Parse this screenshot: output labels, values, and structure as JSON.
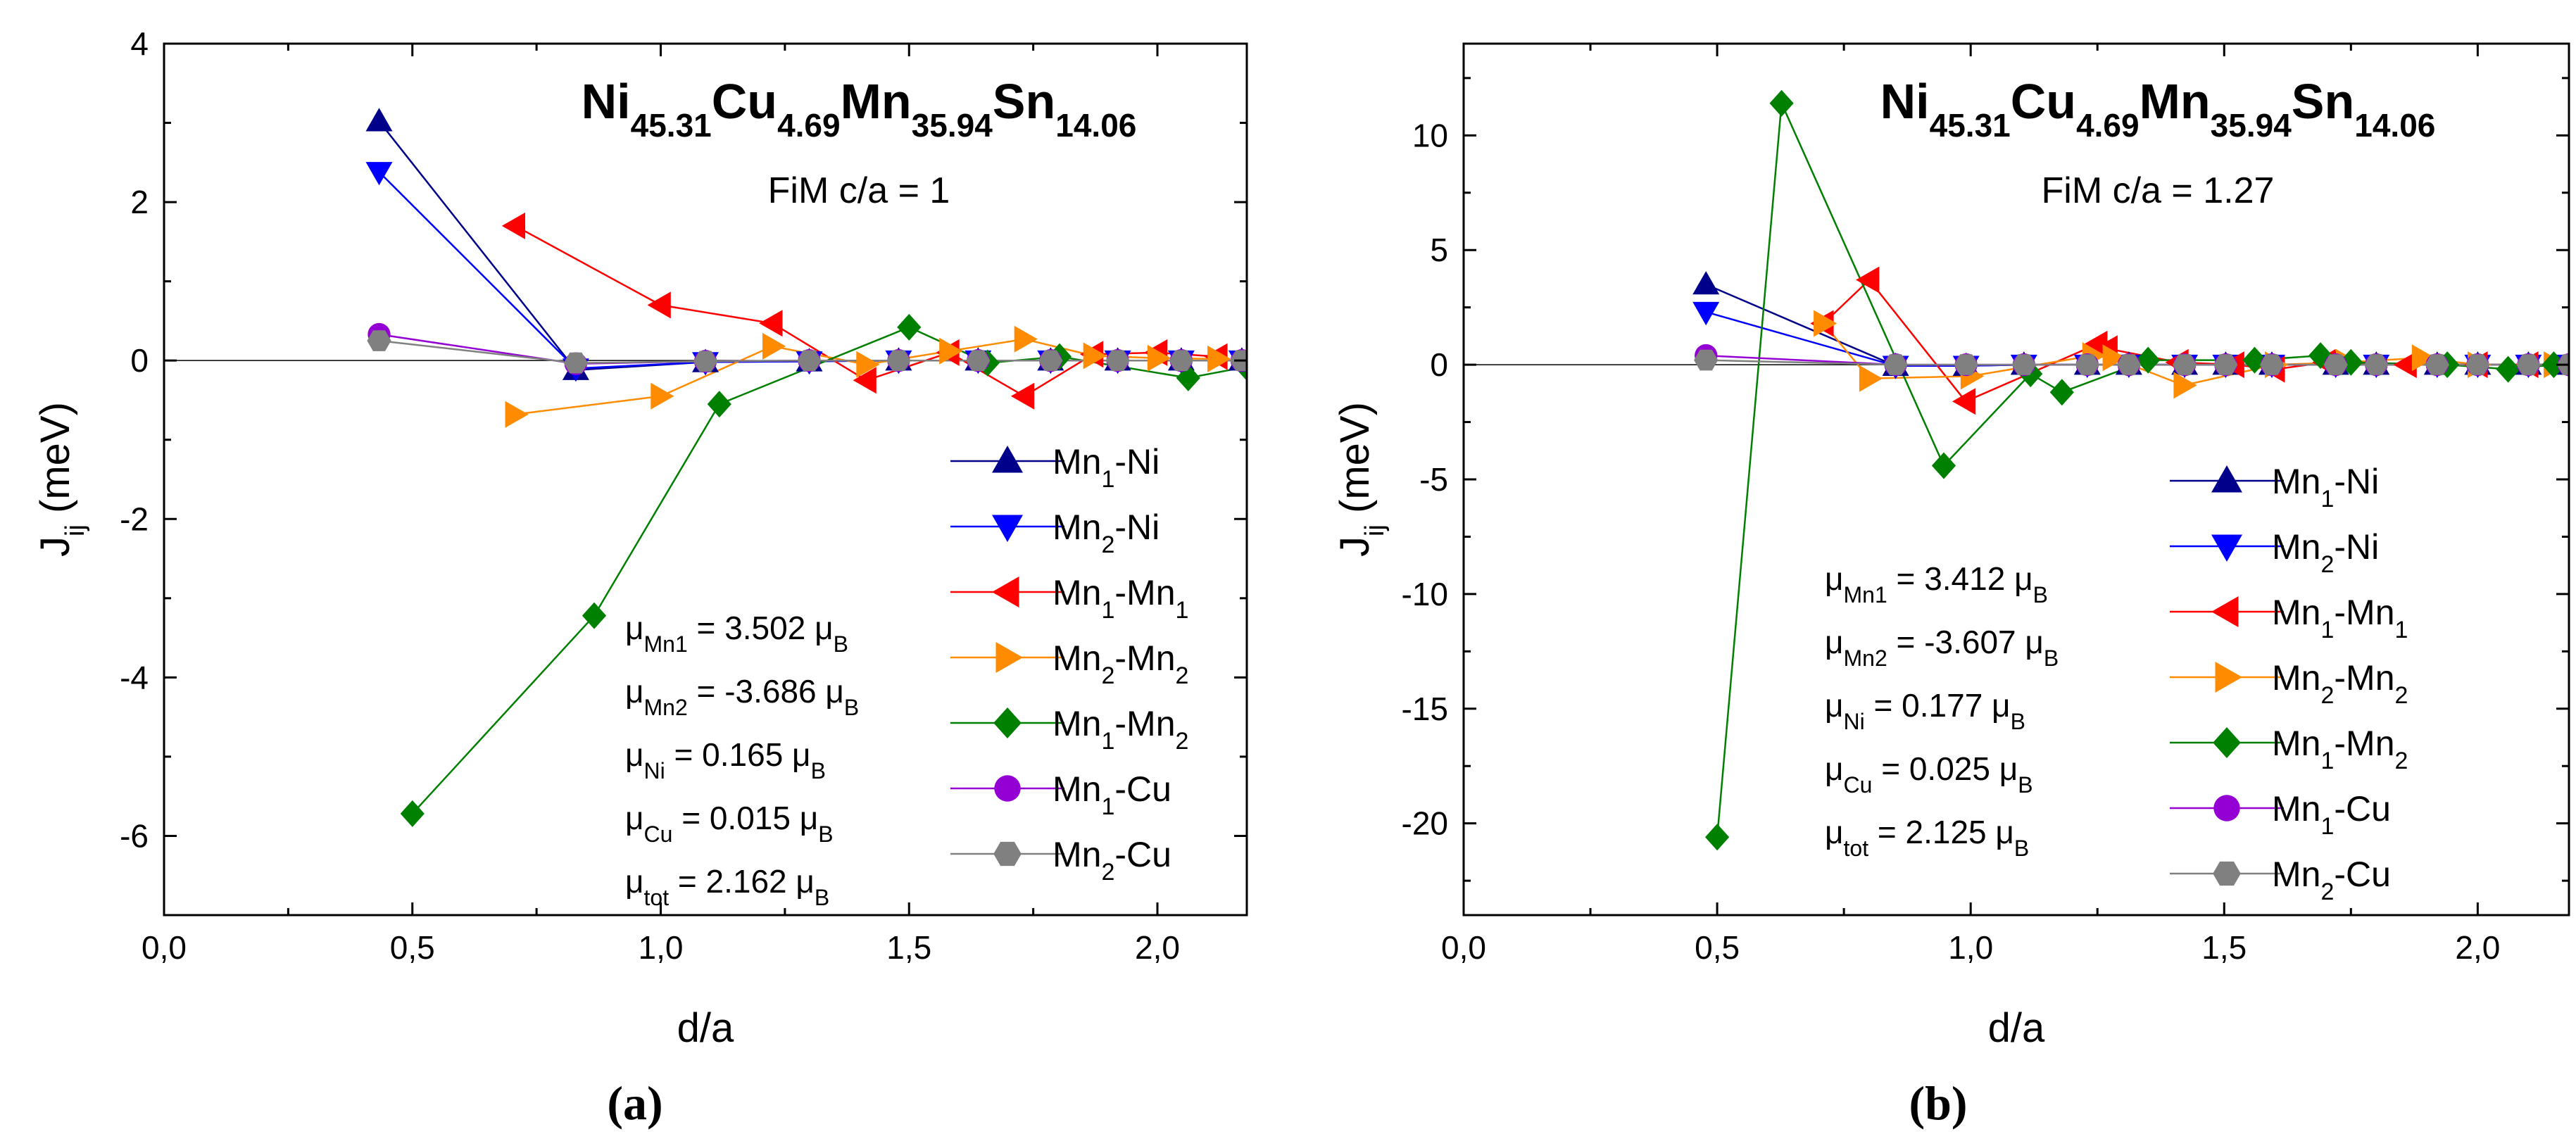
{
  "figure_labels": [
    "(a)",
    "(b)"
  ],
  "chart_data": [
    {
      "type": "line",
      "panel": "(a)",
      "title": {
        "parts": [
          [
            "Ni",
            "45.31"
          ],
          [
            "Cu",
            "4.69"
          ],
          [
            "Mn",
            "35.94"
          ],
          [
            "Sn",
            "14.06"
          ]
        ]
      },
      "subtitle": "FiM c/a = 1",
      "xlabel": "d/a",
      "ylabel": {
        "base": "J",
        "sub": "ij",
        "unit": " (meV)"
      },
      "xlim": [
        0.0,
        2.18
      ],
      "ylim": [
        -7,
        4
      ],
      "xticks": [
        {
          "v": 0.0,
          "label": "0,0"
        },
        {
          "v": 0.5,
          "label": "0,5"
        },
        {
          "v": 1.0,
          "label": "1,0"
        },
        {
          "v": 1.5,
          "label": "1,5"
        },
        {
          "v": 2.0,
          "label": "2,0"
        }
      ],
      "yticks": [
        {
          "v": 4,
          "label": "4"
        },
        {
          "v": 2,
          "label": "2"
        },
        {
          "v": 0,
          "label": "0"
        },
        {
          "v": -2,
          "label": "-2"
        },
        {
          "v": -4,
          "label": "-4"
        },
        {
          "v": -6,
          "label": "-6"
        }
      ],
      "minor_xticks": [
        0.25,
        0.75,
        1.25,
        1.75
      ],
      "minor_yticks": [
        3,
        1,
        -1,
        -3,
        -5,
        -7
      ],
      "legend_placement": "bottom-right",
      "series": [
        {
          "name": "Mn1-Ni",
          "label_parts": [
            [
              "Mn",
              "1"
            ],
            [
              "-Ni",
              ""
            ]
          ],
          "color": "#00008b",
          "marker": "triangle-up",
          "x": [
            0.433,
            0.829,
            1.09,
            1.299,
            1.479,
            1.639,
            1.785,
            1.92,
            2.048,
            2.17
          ],
          "y": [
            3.02,
            -0.12,
            -0.02,
            -0.01,
            0.0,
            0.0,
            0.0,
            0.0,
            0.0,
            0.0
          ]
        },
        {
          "name": "Mn2-Ni",
          "label_parts": [
            [
              "Mn",
              "2"
            ],
            [
              "-Ni",
              ""
            ]
          ],
          "color": "#0000ff",
          "marker": "triangle-down",
          "x": [
            0.433,
            0.829,
            1.09,
            1.299,
            1.479,
            1.639,
            1.785,
            1.92,
            2.048,
            2.17
          ],
          "y": [
            2.38,
            -0.1,
            -0.02,
            -0.01,
            0.0,
            0.0,
            0.0,
            0.0,
            0.0,
            0.0
          ]
        },
        {
          "name": "Mn1-Mn1",
          "label_parts": [
            [
              "Mn",
              "1"
            ],
            [
              "-Mn",
              "1"
            ]
          ],
          "color": "#ff0000",
          "marker": "triangle-left",
          "x": [
            0.707,
            1.0,
            1.225,
            1.414,
            1.581,
            1.732,
            1.871,
            2.0,
            2.121
          ],
          "y": [
            1.7,
            0.7,
            0.47,
            -0.25,
            0.1,
            -0.45,
            0.08,
            0.1,
            0.05
          ]
        },
        {
          "name": "Mn2-Mn2",
          "label_parts": [
            [
              "Mn",
              "2"
            ],
            [
              "-Mn",
              "2"
            ]
          ],
          "color": "#ff8c00",
          "marker": "triangle-right",
          "x": [
            0.707,
            1.0,
            1.225,
            1.414,
            1.581,
            1.732,
            1.871,
            2.0,
            2.121
          ],
          "y": [
            -0.68,
            -0.45,
            0.18,
            -0.05,
            0.12,
            0.27,
            0.06,
            0.03,
            0.02
          ]
        },
        {
          "name": "Mn1-Mn2",
          "label_parts": [
            [
              "Mn",
              "1"
            ],
            [
              "-Mn",
              "2"
            ]
          ],
          "color": "#008000",
          "marker": "diamond",
          "x": [
            0.5,
            0.866,
            1.118,
            1.5,
            1.658,
            1.803,
            2.062,
            2.179
          ],
          "y": [
            -5.72,
            -3.22,
            -0.55,
            0.42,
            -0.03,
            0.05,
            -0.22,
            -0.08
          ]
        },
        {
          "name": "Mn1-Cu",
          "label_parts": [
            [
              "Mn",
              "1"
            ],
            [
              "-Cu",
              ""
            ]
          ],
          "color": "#9400d3",
          "marker": "circle",
          "x": [
            0.433,
            0.829,
            1.09,
            1.299,
            1.479,
            1.639,
            1.785,
            1.92,
            2.048,
            2.17
          ],
          "y": [
            0.33,
            -0.04,
            -0.01,
            0.0,
            0.0,
            0.0,
            0.0,
            0.0,
            0.0,
            0.0
          ]
        },
        {
          "name": "Mn2-Cu",
          "label_parts": [
            [
              "Mn",
              "2"
            ],
            [
              "-Cu",
              ""
            ]
          ],
          "color": "#808080",
          "marker": "hexagon",
          "x": [
            0.433,
            0.829,
            1.09,
            1.299,
            1.479,
            1.639,
            1.785,
            1.92,
            2.048,
            2.17
          ],
          "y": [
            0.25,
            -0.03,
            -0.01,
            0.0,
            0.0,
            0.0,
            0.0,
            0.0,
            0.0,
            0.0
          ]
        }
      ],
      "moments": [
        {
          "sub": "Mn1",
          "eq": " =  3.502 ",
          "unit": "B"
        },
        {
          "sub": "Mn2",
          "eq": " = -3.686 ",
          "unit": "B"
        },
        {
          "sub": "Ni",
          "eq": "  =  0.165 ",
          "unit": "B"
        },
        {
          "sub": "Cu",
          "eq": "   =  0.015 ",
          "unit": "B"
        },
        {
          "sub": "tot",
          "eq": "   =  2.162 ",
          "unit": "B"
        }
      ]
    },
    {
      "type": "line",
      "panel": "(b)",
      "title": {
        "parts": [
          [
            "Ni",
            "45.31"
          ],
          [
            "Cu",
            "4.69"
          ],
          [
            "Mn",
            "35.94"
          ],
          [
            "Sn",
            "14.06"
          ]
        ]
      },
      "subtitle": "FiM c/a = 1.27",
      "xlabel": "d/a",
      "ylabel": {
        "base": "J",
        "sub": "ij",
        "unit": " (meV)"
      },
      "xlim": [
        0.0,
        2.18
      ],
      "ylim": [
        -24,
        14
      ],
      "xticks": [
        {
          "v": 0.0,
          "label": "0,0"
        },
        {
          "v": 0.5,
          "label": "0,5"
        },
        {
          "v": 1.0,
          "label": "1,0"
        },
        {
          "v": 1.5,
          "label": "1,5"
        },
        {
          "v": 2.0,
          "label": "2,0"
        }
      ],
      "yticks": [
        {
          "v": 10,
          "label": "10"
        },
        {
          "v": 5,
          "label": "5"
        },
        {
          "v": 0,
          "label": "0"
        },
        {
          "v": -5,
          "label": "-5"
        },
        {
          "v": -10,
          "label": "-10"
        },
        {
          "v": -15,
          "label": "-15"
        },
        {
          "v": -20,
          "label": "-20"
        }
      ],
      "minor_xticks": [
        0.25,
        0.75,
        1.25,
        1.75
      ],
      "minor_yticks": [
        12.5,
        7.5,
        2.5,
        -2.5,
        -7.5,
        -12.5,
        -17.5,
        -22.5
      ],
      "legend_placement": "bottom-right",
      "series": [
        {
          "name": "Mn1-Ni",
          "label_parts": [
            [
              "Mn",
              "1"
            ],
            [
              "-Ni",
              ""
            ]
          ],
          "color": "#00008b",
          "marker": "triangle-up",
          "x": [
            0.478,
            0.852,
            0.991,
            1.105,
            1.23,
            1.312,
            1.422,
            1.503,
            1.594,
            1.72,
            1.8,
            1.92,
            2.0,
            2.1,
            2.18
          ],
          "y": [
            3.5,
            -0.05,
            -0.05,
            0.0,
            0.0,
            0.0,
            0.0,
            0.0,
            0.0,
            0.0,
            0.0,
            0.0,
            0.0,
            0.0,
            0.0
          ]
        },
        {
          "name": "Mn2-Ni",
          "label_parts": [
            [
              "Mn",
              "2"
            ],
            [
              "-Ni",
              ""
            ]
          ],
          "color": "#0000ff",
          "marker": "triangle-down",
          "x": [
            0.478,
            0.852,
            0.991,
            1.105,
            1.23,
            1.312,
            1.422,
            1.503,
            1.594,
            1.72,
            1.8,
            1.92,
            2.0,
            2.1,
            2.18
          ],
          "y": [
            2.3,
            -0.05,
            -0.05,
            0.0,
            0.0,
            0.0,
            0.0,
            0.0,
            0.0,
            0.0,
            0.0,
            0.0,
            0.0,
            0.0,
            0.0
          ]
        },
        {
          "name": "Mn1-Mn1",
          "label_parts": [
            [
              "Mn",
              "1"
            ],
            [
              "-Mn",
              "1"
            ]
          ],
          "color": "#ff0000",
          "marker": "triangle-left",
          "x": [
            0.71,
            0.8,
            0.99,
            1.25,
            1.27,
            1.41,
            1.52,
            1.6,
            1.7,
            1.86,
            2.0,
            2.1
          ],
          "y": [
            1.8,
            3.7,
            -1.6,
            0.9,
            0.7,
            0.1,
            0.0,
            -0.2,
            0.1,
            0.0,
            0.0,
            0.0
          ]
        },
        {
          "name": "Mn2-Mn2",
          "label_parts": [
            [
              "Mn",
              "2"
            ],
            [
              "-Mn",
              "2"
            ]
          ],
          "color": "#ff8c00",
          "marker": "triangle-right",
          "x": [
            0.71,
            0.8,
            1.0,
            1.24,
            1.28,
            1.42,
            1.6,
            1.74,
            1.89,
            2.0,
            2.15
          ],
          "y": [
            1.8,
            -0.6,
            -0.5,
            0.4,
            0.3,
            -0.9,
            0.0,
            0.1,
            0.3,
            0.0,
            0.0
          ]
        },
        {
          "name": "Mn1-Mn2",
          "label_parts": [
            [
              "Mn",
              "1"
            ],
            [
              "-Mn",
              "2"
            ]
          ],
          "color": "#008000",
          "marker": "diamond",
          "x": [
            0.5,
            0.627,
            0.947,
            1.118,
            1.18,
            1.35,
            1.56,
            1.69,
            1.75,
            1.94,
            2.06,
            2.15
          ],
          "y": [
            -20.6,
            11.4,
            -4.4,
            -0.4,
            -1.2,
            0.2,
            0.2,
            0.4,
            0.1,
            0.0,
            -0.2,
            0.0
          ]
        },
        {
          "name": "Mn1-Cu",
          "label_parts": [
            [
              "Mn",
              "1"
            ],
            [
              "-Cu",
              ""
            ]
          ],
          "color": "#9400d3",
          "marker": "circle",
          "x": [
            0.478,
            0.852,
            0.991,
            1.105,
            1.23,
            1.312,
            1.422,
            1.503,
            1.594,
            1.72,
            1.8,
            1.92,
            2.0,
            2.1,
            2.18
          ],
          "y": [
            0.4,
            0.0,
            0.0,
            0.0,
            0.0,
            0.0,
            0.0,
            0.0,
            0.0,
            0.0,
            0.0,
            0.0,
            0.0,
            0.0,
            0.0
          ]
        },
        {
          "name": "Mn2-Cu",
          "label_parts": [
            [
              "Mn",
              "2"
            ],
            [
              "-Cu",
              ""
            ]
          ],
          "color": "#808080",
          "marker": "hexagon",
          "x": [
            0.478,
            0.852,
            0.991,
            1.105,
            1.23,
            1.312,
            1.422,
            1.503,
            1.594,
            1.72,
            1.8,
            1.92,
            2.0,
            2.1,
            2.18
          ],
          "y": [
            0.2,
            0.0,
            0.0,
            0.0,
            0.0,
            0.0,
            0.0,
            0.0,
            0.0,
            0.0,
            0.0,
            0.0,
            0.0,
            0.0,
            0.0
          ]
        }
      ],
      "moments": [
        {
          "sub": "Mn1",
          "eq": " =  3.412 ",
          "unit": "B"
        },
        {
          "sub": "Mn2",
          "eq": " = -3.607 ",
          "unit": "B"
        },
        {
          "sub": "Ni",
          "eq": "  =  0.177 ",
          "unit": "B"
        },
        {
          "sub": "Cu",
          "eq": "   =  0.025 ",
          "unit": "B"
        },
        {
          "sub": "tot",
          "eq": "   =  2.125 ",
          "unit": "B"
        }
      ]
    }
  ]
}
